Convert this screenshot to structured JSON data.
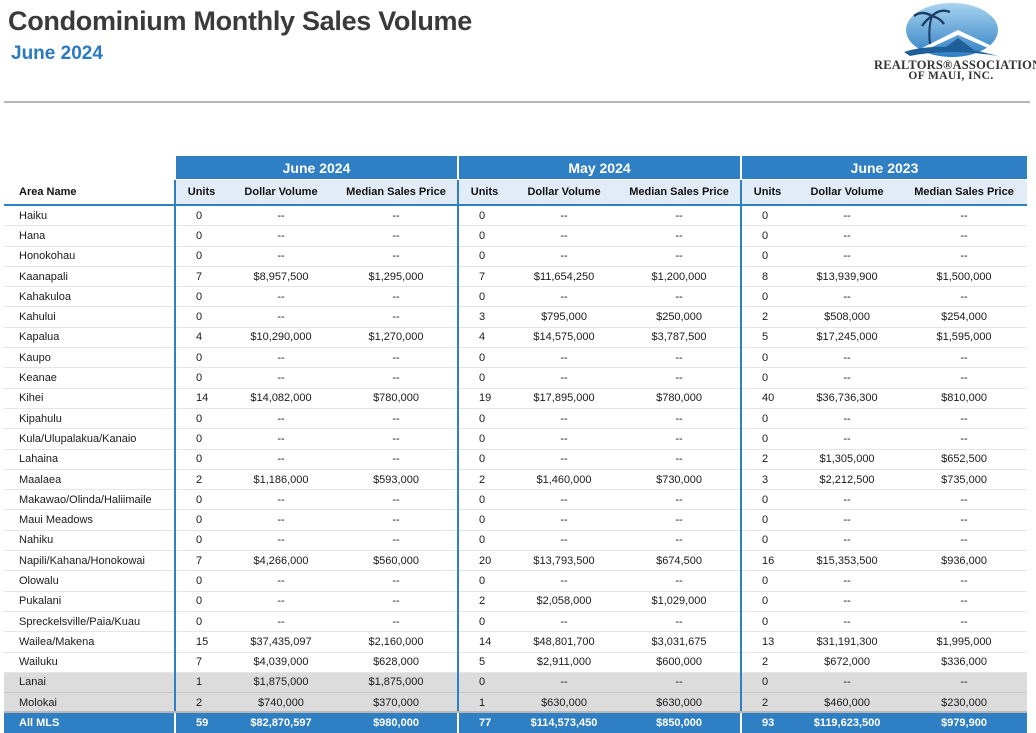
{
  "header": {
    "title": "Condominium Monthly Sales Volume",
    "subtitle": "June 2024",
    "logo_line1": "REALTORS®ASSOCIATION",
    "logo_line2": "OF MAUI, INC."
  },
  "colors": {
    "accent": "#2f7fc4",
    "title": "#3a3a3a",
    "subtitle": "#2a7abf",
    "island_row": "#dcdcdc"
  },
  "table": {
    "area_header": "Area Name",
    "groups": [
      "June 2024",
      "May 2024",
      "June 2023"
    ],
    "sub_headers": [
      "Units",
      "Dollar Volume",
      "Median Sales Price"
    ],
    "rows": [
      [
        "Haiku",
        "0",
        "--",
        "--",
        "0",
        "--",
        "--",
        "0",
        "--",
        "--"
      ],
      [
        "Hana",
        "0",
        "--",
        "--",
        "0",
        "--",
        "--",
        "0",
        "--",
        "--"
      ],
      [
        "Honokohau",
        "0",
        "--",
        "--",
        "0",
        "--",
        "--",
        "0",
        "--",
        "--"
      ],
      [
        "Kaanapali",
        "7",
        "$8,957,500",
        "$1,295,000",
        "7",
        "$11,654,250",
        "$1,200,000",
        "8",
        "$13,939,900",
        "$1,500,000"
      ],
      [
        "Kahakuloa",
        "0",
        "--",
        "--",
        "0",
        "--",
        "--",
        "0",
        "--",
        "--"
      ],
      [
        "Kahului",
        "0",
        "--",
        "--",
        "3",
        "$795,000",
        "$250,000",
        "2",
        "$508,000",
        "$254,000"
      ],
      [
        "Kapalua",
        "4",
        "$10,290,000",
        "$1,270,000",
        "4",
        "$14,575,000",
        "$3,787,500",
        "5",
        "$17,245,000",
        "$1,595,000"
      ],
      [
        "Kaupo",
        "0",
        "--",
        "--",
        "0",
        "--",
        "--",
        "0",
        "--",
        "--"
      ],
      [
        "Keanae",
        "0",
        "--",
        "--",
        "0",
        "--",
        "--",
        "0",
        "--",
        "--"
      ],
      [
        "Kihei",
        "14",
        "$14,082,000",
        "$780,000",
        "19",
        "$17,895,000",
        "$780,000",
        "40",
        "$36,736,300",
        "$810,000"
      ],
      [
        "Kipahulu",
        "0",
        "--",
        "--",
        "0",
        "--",
        "--",
        "0",
        "--",
        "--"
      ],
      [
        "Kula/Ulupalakua/Kanaio",
        "0",
        "--",
        "--",
        "0",
        "--",
        "--",
        "0",
        "--",
        "--"
      ],
      [
        "Lahaina",
        "0",
        "--",
        "--",
        "0",
        "--",
        "--",
        "2",
        "$1,305,000",
        "$652,500"
      ],
      [
        "Maalaea",
        "2",
        "$1,186,000",
        "$593,000",
        "2",
        "$1,460,000",
        "$730,000",
        "3",
        "$2,212,500",
        "$735,000"
      ],
      [
        "Makawao/Olinda/Haliimaile",
        "0",
        "--",
        "--",
        "0",
        "--",
        "--",
        "0",
        "--",
        "--"
      ],
      [
        "Maui Meadows",
        "0",
        "--",
        "--",
        "0",
        "--",
        "--",
        "0",
        "--",
        "--"
      ],
      [
        "Nahiku",
        "0",
        "--",
        "--",
        "0",
        "--",
        "--",
        "0",
        "--",
        "--"
      ],
      [
        "Napili/Kahana/Honokowai",
        "7",
        "$4,266,000",
        "$560,000",
        "20",
        "$13,793,500",
        "$674,500",
        "16",
        "$15,353,500",
        "$936,000"
      ],
      [
        "Olowalu",
        "0",
        "--",
        "--",
        "0",
        "--",
        "--",
        "0",
        "--",
        "--"
      ],
      [
        "Pukalani",
        "0",
        "--",
        "--",
        "2",
        "$2,058,000",
        "$1,029,000",
        "0",
        "--",
        "--"
      ],
      [
        "Spreckelsville/Paia/Kuau",
        "0",
        "--",
        "--",
        "0",
        "--",
        "--",
        "0",
        "--",
        "--"
      ],
      [
        "Wailea/Makena",
        "15",
        "$37,435,097",
        "$2,160,000",
        "14",
        "$48,801,700",
        "$3,031,675",
        "13",
        "$31,191,300",
        "$1,995,000"
      ],
      [
        "Wailuku",
        "7",
        "$4,039,000",
        "$628,000",
        "5",
        "$2,911,000",
        "$600,000",
        "2",
        "$672,000",
        "$336,000"
      ]
    ],
    "island_rows": [
      [
        "Lanai",
        "1",
        "$1,875,000",
        "$1,875,000",
        "0",
        "--",
        "--",
        "0",
        "--",
        "--"
      ],
      [
        "Molokai",
        "2",
        "$740,000",
        "$370,000",
        "1",
        "$630,000",
        "$630,000",
        "2",
        "$460,000",
        "$230,000"
      ]
    ],
    "total_row": [
      "All MLS",
      "59",
      "$82,870,597",
      "$980,000",
      "77",
      "$114,573,450",
      "$850,000",
      "93",
      "$119,623,500",
      "$979,900"
    ]
  }
}
